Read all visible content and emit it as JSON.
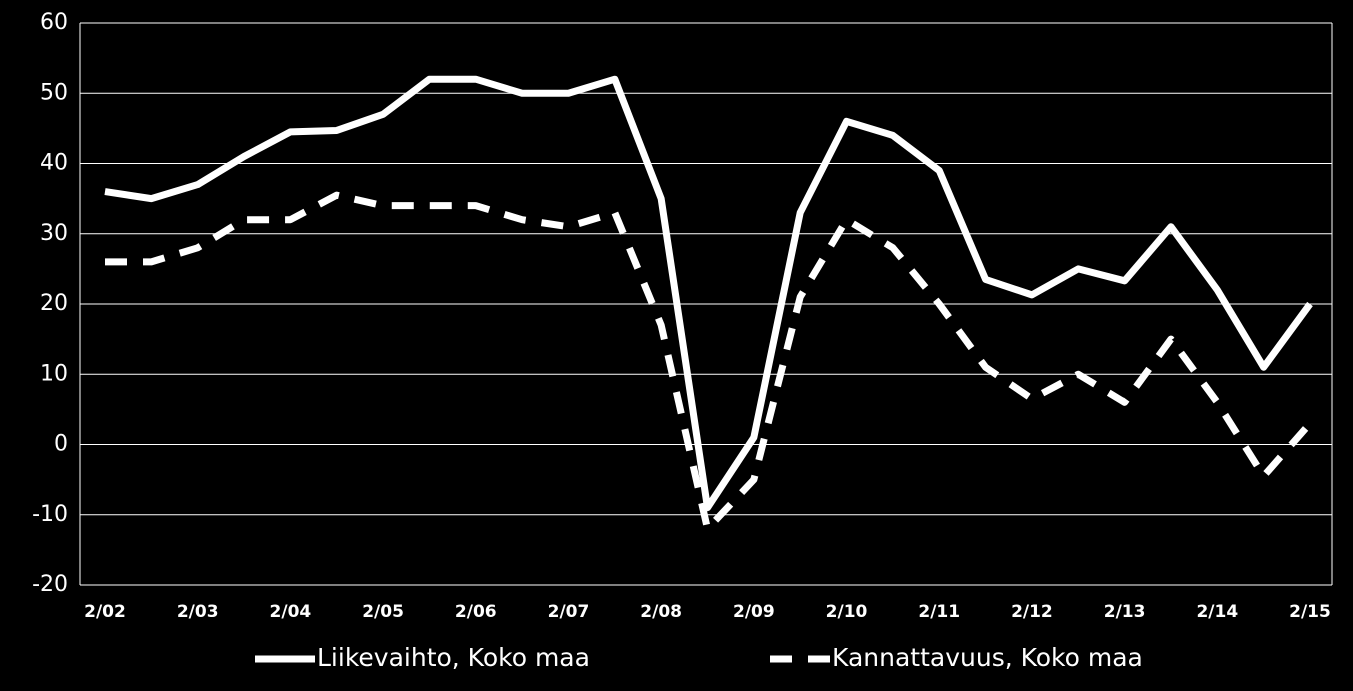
{
  "chart_data": {
    "type": "line",
    "categories": [
      "2/02",
      null,
      "2/03",
      null,
      "2/04",
      null,
      "2/05",
      null,
      "2/06",
      null,
      "2/07",
      null,
      "2/08",
      null,
      "2/09",
      null,
      "2/10",
      null,
      "2/11",
      null,
      "2/12",
      null,
      "2/13",
      null,
      "2/14",
      null,
      "2/15"
    ],
    "series": [
      {
        "name": "Liikevaihto, Koko maa",
        "color": "#ffffff",
        "dash": false,
        "values": [
          36,
          35,
          37,
          41,
          44.5,
          44.7,
          47,
          52,
          52,
          50,
          50,
          52,
          35,
          -9,
          1,
          33,
          46,
          44,
          39,
          23.5,
          21.3,
          25,
          23.3,
          31,
          22,
          11,
          20
        ]
      },
      {
        "name": "Kannattavuus, Koko maa",
        "color": "#ffffff",
        "dash": true,
        "values": [
          26,
          26,
          28,
          32,
          32,
          35.5,
          34,
          34,
          34,
          32,
          31,
          33,
          17,
          -12,
          -5,
          21,
          32,
          28,
          20,
          11,
          6.5,
          10,
          6,
          15,
          6,
          -4.5,
          3
        ]
      }
    ],
    "ylim": [
      -20,
      60
    ],
    "yticks": [
      -20,
      -10,
      0,
      10,
      20,
      30,
      40,
      50,
      60
    ],
    "grid": true,
    "legend": "bottom"
  }
}
